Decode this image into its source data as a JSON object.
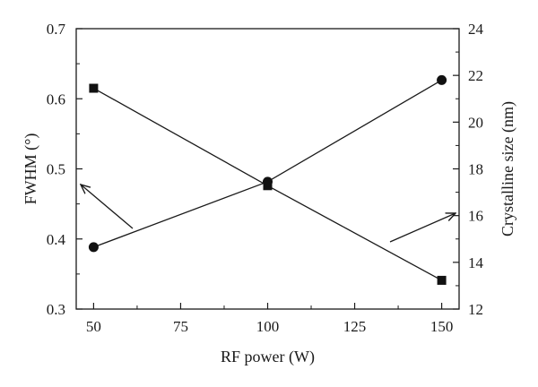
{
  "chart_data": {
    "type": "line",
    "title": "",
    "xlabel": "RF power (W)",
    "ylabel_left": "FWHM (°)",
    "ylabel_right": "Crystalline size (nm)",
    "xlim": [
      45,
      155
    ],
    "ylim_left": [
      0.3,
      0.7
    ],
    "ylim_right": [
      12,
      24
    ],
    "x_ticks": [
      50,
      75,
      100,
      125,
      150
    ],
    "y_left_ticks": [
      0.3,
      0.4,
      0.5,
      0.6,
      0.7
    ],
    "y_right_ticks": [
      12,
      14,
      16,
      18,
      20,
      22,
      24
    ],
    "grid": false,
    "legend": "none",
    "series": [
      {
        "axis": "left",
        "marker": "square",
        "x": [
          50,
          100,
          150
        ],
        "values": [
          0.615,
          0.476,
          0.341
        ]
      },
      {
        "axis": "right",
        "marker": "circle",
        "x": [
          50,
          100,
          150
        ],
        "values": [
          14.65,
          17.45,
          21.8
        ]
      }
    ],
    "annotations": [
      {
        "type": "arrow",
        "points_to": "left-axis",
        "from_series": "circle"
      },
      {
        "type": "arrow",
        "points_to": "right-axis",
        "from_series": "square"
      }
    ]
  }
}
